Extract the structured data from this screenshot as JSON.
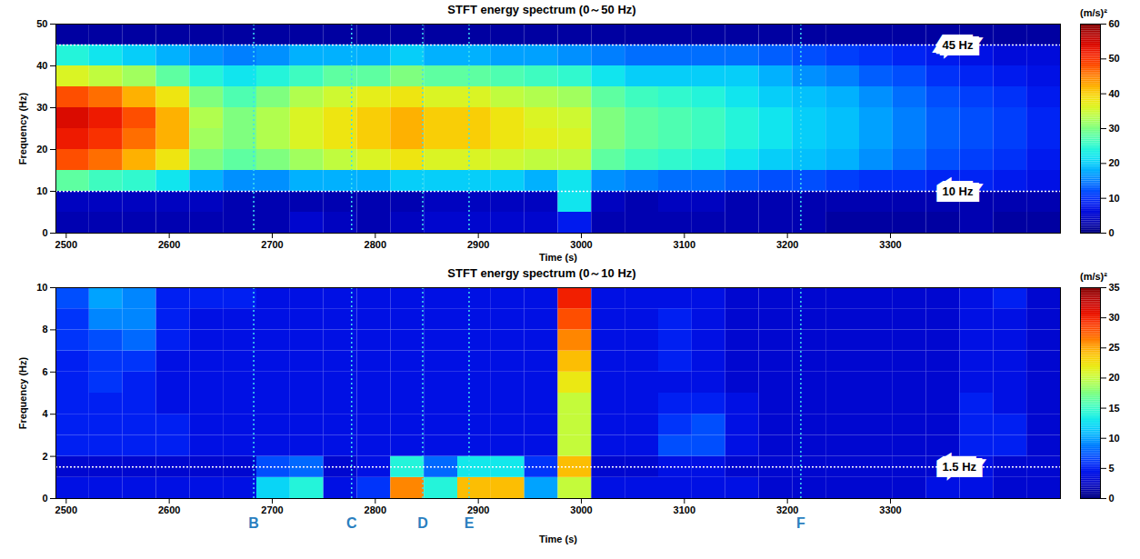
{
  "chart_data": [
    {
      "type": "heatmap",
      "title": "STFT energy spectrum (0～50 Hz)",
      "xlabel": "Time (s)",
      "ylabel": "Frequency (Hz)",
      "xlim": [
        2490,
        3465
      ],
      "ylim": [
        0,
        50
      ],
      "xticks": [
        2500,
        2600,
        2700,
        2800,
        2900,
        3000,
        3100,
        3200,
        3300
      ],
      "yticks": [
        0,
        10,
        20,
        30,
        40,
        50
      ],
      "x_edges": [
        2490,
        2522.5,
        2555,
        2587.5,
        2620,
        2652.5,
        2685,
        2717.5,
        2750,
        2782.5,
        2815,
        2847.5,
        2880,
        2912.5,
        2945,
        2977.5,
        3010,
        3042.5,
        3075,
        3107.5,
        3140,
        3172.5,
        3205,
        3237.5,
        3270,
        3302.5,
        3335,
        3367.5,
        3400,
        3432.5,
        3465
      ],
      "y_edges": [
        0,
        5,
        10,
        15,
        20,
        25,
        30,
        35,
        40,
        45,
        50
      ],
      "cells": [
        [
          3,
          3,
          3,
          3,
          3,
          3,
          3,
          5,
          4,
          3,
          4,
          5,
          5,
          5,
          5,
          8,
          3,
          3,
          3,
          3,
          3,
          3,
          3,
          2,
          2,
          2,
          2,
          3,
          2,
          2
        ],
        [
          4,
          4,
          4,
          4,
          4,
          3,
          3,
          3,
          3,
          3,
          3,
          4,
          4,
          4,
          4,
          22,
          4,
          3,
          4,
          4,
          3,
          3,
          3,
          3,
          3,
          3,
          3,
          3,
          3,
          3
        ],
        [
          28,
          26,
          25,
          22,
          18,
          16,
          16,
          18,
          18,
          18,
          20,
          20,
          20,
          20,
          18,
          22,
          16,
          15,
          14,
          14,
          13,
          12,
          12,
          11,
          10,
          10,
          9,
          9,
          8,
          7
        ],
        [
          48,
          46,
          42,
          38,
          30,
          28,
          30,
          32,
          34,
          36,
          38,
          36,
          36,
          35,
          34,
          34,
          28,
          26,
          25,
          24,
          22,
          20,
          19,
          18,
          16,
          14,
          12,
          11,
          10,
          8
        ],
        [
          52,
          50,
          46,
          42,
          32,
          30,
          33,
          36,
          38,
          40,
          42,
          40,
          40,
          38,
          37,
          36,
          30,
          28,
          27,
          26,
          24,
          22,
          20,
          19,
          17,
          15,
          13,
          12,
          11,
          9
        ],
        [
          54,
          52,
          48,
          42,
          33,
          30,
          33,
          36,
          38,
          40,
          42,
          40,
          40,
          38,
          36,
          35,
          30,
          28,
          27,
          26,
          24,
          22,
          20,
          19,
          17,
          15,
          13,
          12,
          11,
          9
        ],
        [
          48,
          46,
          42,
          38,
          30,
          27,
          30,
          33,
          35,
          37,
          38,
          36,
          36,
          34,
          33,
          32,
          28,
          26,
          25,
          24,
          22,
          20,
          19,
          18,
          16,
          14,
          12,
          11,
          10,
          8
        ],
        [
          36,
          34,
          32,
          28,
          24,
          22,
          24,
          26,
          28,
          28,
          30,
          28,
          28,
          27,
          26,
          25,
          22,
          20,
          20,
          20,
          20,
          18,
          16,
          15,
          13,
          12,
          10,
          9,
          8,
          7
        ],
        [
          24,
          22,
          20,
          18,
          16,
          15,
          16,
          18,
          18,
          18,
          20,
          18,
          18,
          17,
          17,
          16,
          15,
          14,
          14,
          14,
          14,
          13,
          12,
          11,
          10,
          9,
          8,
          7,
          6,
          6
        ],
        [
          2,
          2,
          2,
          2,
          2,
          2,
          2,
          2,
          2,
          2,
          2,
          2,
          2,
          2,
          2,
          2,
          2,
          2,
          2,
          2,
          2,
          2,
          2,
          2,
          2,
          2,
          2,
          2,
          2,
          2
        ]
      ],
      "colorbar": {
        "label": "(m/s)²",
        "range": [
          0,
          60
        ],
        "ticks": [
          0,
          10,
          20,
          30,
          40,
          50,
          60
        ]
      },
      "hlines": [
        {
          "value": 45,
          "label": "45 Hz"
        },
        {
          "value": 10,
          "label": "10 Hz"
        }
      ],
      "vlines": [
        2682,
        2777,
        2846,
        2891,
        3213
      ]
    },
    {
      "type": "heatmap",
      "title": "STFT energy spectrum (0～10 Hz)",
      "xlabel": "Time (s)",
      "ylabel": "Frequency (Hz)",
      "xlim": [
        2490,
        3465
      ],
      "ylim": [
        0,
        10
      ],
      "xticks": [
        2500,
        2600,
        2700,
        2800,
        2900,
        3000,
        3100,
        3200,
        3300
      ],
      "yticks": [
        0,
        2,
        4,
        6,
        8,
        10
      ],
      "x_edges": [
        2490,
        2522.5,
        2555,
        2587.5,
        2620,
        2652.5,
        2685,
        2717.5,
        2750,
        2782.5,
        2815,
        2847.5,
        2880,
        2912.5,
        2945,
        2977.5,
        3010,
        3042.5,
        3075,
        3107.5,
        3140,
        3172.5,
        3205,
        3237.5,
        3270,
        3302.5,
        3335,
        3367.5,
        3400,
        3432.5,
        3465
      ],
      "y_edges": [
        0,
        1,
        2,
        3,
        4,
        5,
        6,
        7,
        8,
        9,
        10
      ],
      "cells": [
        [
          4,
          4,
          4,
          4,
          4,
          4,
          12,
          14,
          4,
          6,
          26,
          14,
          24,
          24,
          10,
          20,
          4,
          4,
          4,
          4,
          4,
          3,
          3,
          3,
          3,
          3,
          4,
          4,
          3,
          3
        ],
        [
          3,
          3,
          3,
          3,
          3,
          3,
          7,
          8,
          3,
          4,
          14,
          8,
          13,
          13,
          6,
          24,
          3,
          3,
          4,
          4,
          3,
          3,
          3,
          3,
          3,
          3,
          3,
          4,
          3,
          3
        ],
        [
          5,
          5,
          5,
          5,
          4,
          4,
          4,
          4,
          4,
          4,
          4,
          4,
          4,
          4,
          4,
          20,
          4,
          4,
          7,
          7,
          4,
          3,
          3,
          3,
          3,
          3,
          3,
          5,
          5,
          3
        ],
        [
          5,
          5,
          5,
          5,
          4,
          4,
          4,
          4,
          4,
          4,
          4,
          4,
          4,
          4,
          4,
          20,
          4,
          4,
          6,
          7,
          4,
          3,
          3,
          3,
          3,
          3,
          3,
          5,
          5,
          3
        ],
        [
          5,
          5,
          5,
          4,
          4,
          4,
          4,
          4,
          4,
          4,
          4,
          4,
          4,
          4,
          4,
          20,
          4,
          4,
          5,
          5,
          4,
          3,
          3,
          3,
          3,
          3,
          3,
          5,
          4,
          3
        ],
        [
          5,
          6,
          5,
          4,
          4,
          4,
          4,
          4,
          4,
          4,
          4,
          4,
          4,
          4,
          4,
          22,
          4,
          4,
          4,
          4,
          3,
          3,
          3,
          3,
          3,
          3,
          3,
          4,
          4,
          3
        ],
        [
          5,
          6,
          6,
          4,
          4,
          4,
          4,
          4,
          4,
          4,
          4,
          4,
          4,
          4,
          4,
          24,
          4,
          4,
          5,
          4,
          3,
          3,
          3,
          3,
          3,
          3,
          3,
          4,
          4,
          3
        ],
        [
          6,
          7,
          8,
          5,
          4,
          4,
          4,
          4,
          4,
          4,
          4,
          4,
          4,
          4,
          4,
          26,
          4,
          4,
          5,
          4,
          3,
          3,
          3,
          3,
          3,
          3,
          3,
          4,
          4,
          3
        ],
        [
          6,
          9,
          9,
          5,
          4,
          4,
          4,
          4,
          4,
          4,
          4,
          4,
          4,
          4,
          4,
          28,
          4,
          4,
          5,
          4,
          3,
          3,
          3,
          3,
          3,
          3,
          3,
          4,
          4,
          3
        ],
        [
          7,
          10,
          9,
          5,
          5,
          5,
          4,
          4,
          4,
          4,
          4,
          4,
          4,
          4,
          4,
          30,
          4,
          4,
          4,
          4,
          3,
          3,
          3,
          3,
          3,
          3,
          3,
          4,
          5,
          3
        ]
      ],
      "colorbar": {
        "label": "(m/s)²",
        "range": [
          0,
          35
        ],
        "ticks": [
          0,
          5,
          10,
          15,
          20,
          25,
          30,
          35
        ]
      },
      "hlines": [
        {
          "value": 1.5,
          "label": "1.5 Hz"
        }
      ],
      "markers": [
        {
          "value": 2682,
          "label": "B"
        },
        {
          "value": 2777,
          "label": "C"
        },
        {
          "value": 2846,
          "label": "D"
        },
        {
          "value": 2891,
          "label": "E"
        },
        {
          "value": 3213,
          "label": "F"
        }
      ]
    }
  ]
}
